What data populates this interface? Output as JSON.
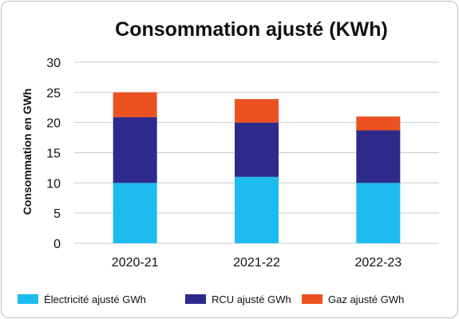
{
  "chart_data": {
    "type": "bar",
    "stacked": true,
    "title": "Consommation ajusté (KWh)",
    "xlabel": "",
    "ylabel": "Consommation en GWh",
    "categories": [
      "2020-21",
      "2021-22",
      "2022-23"
    ],
    "ylim": [
      0,
      30
    ],
    "yticks": [
      0,
      5,
      10,
      15,
      20,
      25,
      30
    ],
    "grid": true,
    "legend_position": "bottom",
    "series": [
      {
        "name": "Électricité ajusté GWh",
        "values": [
          10,
          11,
          10
        ],
        "color": "#1ebcee"
      },
      {
        "name": "RCU ajusté GWh",
        "values": [
          10.9,
          9,
          8.7
        ],
        "color": "#2e2a8c"
      },
      {
        "name": "Gaz ajusté GWh",
        "values": [
          4.1,
          3.9,
          2.3
        ],
        "color": "#ec5122"
      }
    ]
  }
}
